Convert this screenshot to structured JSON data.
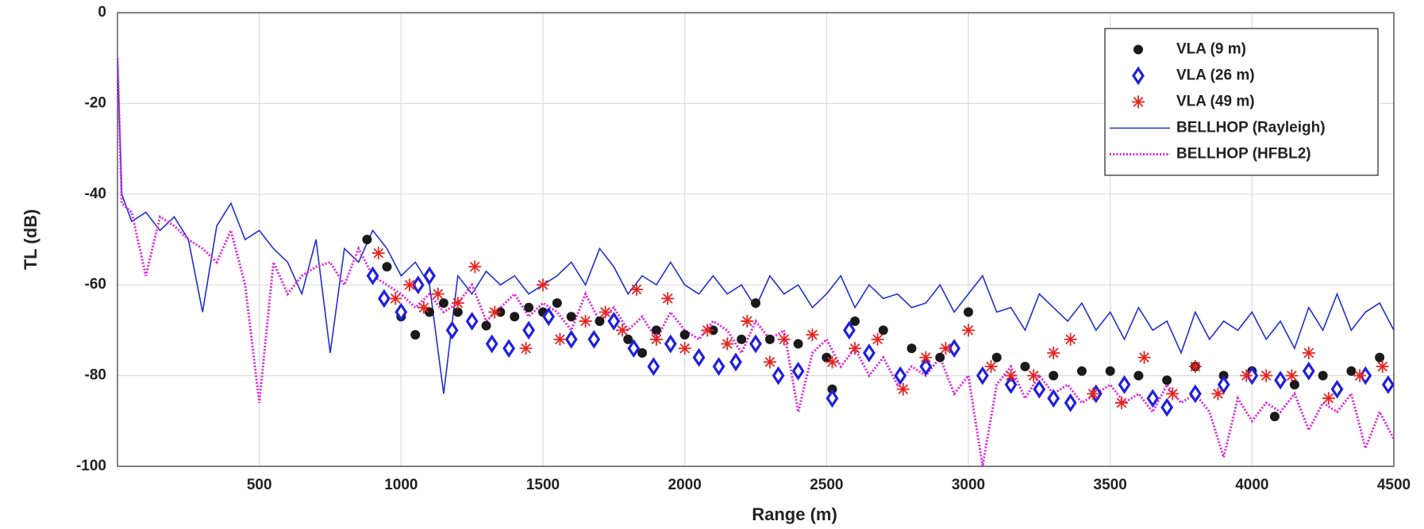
{
  "chart_data": {
    "type": "line",
    "xlabel": "Range (m)",
    "ylabel": "TL (dB)",
    "xlim": [
      0,
      4500
    ],
    "xticks": [
      500,
      1000,
      1500,
      2000,
      2500,
      3000,
      3500,
      4000,
      4500
    ],
    "ylim": [
      -100,
      0
    ],
    "yticks": [
      -100,
      -80,
      -60,
      -40,
      -20,
      0
    ],
    "grid": true,
    "legend": "upper right",
    "series": [
      {
        "name": "VLA (9 m)",
        "type": "scatter",
        "marker": "dot",
        "color": "#1a1a1a",
        "x": [
          880,
          950,
          1000,
          1050,
          1100,
          1150,
          1200,
          1250,
          1300,
          1350,
          1400,
          1450,
          1500,
          1550,
          1600,
          1700,
          1800,
          1850,
          1900,
          2000,
          2100,
          2200,
          2250,
          2300,
          2400,
          2500,
          2520,
          2600,
          2700,
          2800,
          2900,
          3000,
          3100,
          3200,
          3300,
          3400,
          3500,
          3600,
          3700,
          3800,
          3900,
          4000,
          4080,
          4150,
          4250,
          4350,
          4450
        ],
        "values": [
          -50,
          -56,
          -67,
          -71,
          -66,
          -64,
          -66,
          -68,
          -69,
          -66,
          -67,
          -65,
          -66,
          -64,
          -67,
          -68,
          -72,
          -75,
          -70,
          -71,
          -70,
          -72,
          -64,
          -72,
          -73,
          -76,
          -83,
          -68,
          -70,
          -74,
          -76,
          -66,
          -76,
          -78,
          -80,
          -79,
          -79,
          -80,
          -81,
          -78,
          -80,
          -79,
          -89,
          -82,
          -80,
          -79,
          -76
        ]
      },
      {
        "name": "VLA (26 m)",
        "type": "scatter",
        "marker": "diamond",
        "color": "#1f1fe0",
        "x": [
          900,
          940,
          1000,
          1060,
          1100,
          1180,
          1250,
          1320,
          1380,
          1450,
          1520,
          1600,
          1680,
          1750,
          1820,
          1890,
          1950,
          2050,
          2120,
          2180,
          2250,
          2330,
          2400,
          2520,
          2580,
          2650,
          2760,
          2850,
          2950,
          3050,
          3150,
          3250,
          3300,
          3360,
          3450,
          3550,
          3650,
          3700,
          3800,
          3900,
          4000,
          4100,
          4200,
          4300,
          4400,
          4480
        ],
        "values": [
          -58,
          -63,
          -66,
          -60,
          -58,
          -70,
          -68,
          -73,
          -74,
          -70,
          -67,
          -72,
          -72,
          -68,
          -74,
          -78,
          -73,
          -76,
          -78,
          -77,
          -73,
          -80,
          -79,
          -85,
          -70,
          -75,
          -80,
          -78,
          -74,
          -80,
          -82,
          -83,
          -85,
          -86,
          -84,
          -82,
          -85,
          -87,
          -84,
          -82,
          -80,
          -81,
          -79,
          -83,
          -80,
          -82
        ]
      },
      {
        "name": "VLA (49 m)",
        "type": "scatter",
        "marker": "asterisk",
        "color": "#e8231f",
        "x": [
          920,
          980,
          1030,
          1080,
          1130,
          1200,
          1260,
          1330,
          1440,
          1500,
          1560,
          1650,
          1720,
          1780,
          1830,
          1900,
          1940,
          2000,
          2080,
          2150,
          2220,
          2300,
          2350,
          2450,
          2520,
          2600,
          2680,
          2770,
          2850,
          2920,
          3000,
          3080,
          3150,
          3230,
          3300,
          3360,
          3440,
          3540,
          3620,
          3720,
          3800,
          3880,
          3980,
          4050,
          4140,
          4200,
          4270,
          4380,
          4460
        ],
        "values": [
          -53,
          -63,
          -60,
          -65,
          -62,
          -64,
          -56,
          -66,
          -74,
          -60,
          -72,
          -68,
          -66,
          -70,
          -61,
          -72,
          -63,
          -74,
          -70,
          -73,
          -68,
          -77,
          -72,
          -71,
          -77,
          -74,
          -72,
          -83,
          -76,
          -74,
          -70,
          -78,
          -80,
          -80,
          -75,
          -72,
          -84,
          -86,
          -76,
          -84,
          -78,
          -84,
          -80,
          -80,
          -80,
          -75,
          -85,
          -80,
          -78
        ]
      },
      {
        "name": "BELLHOP (Rayleigh)",
        "type": "line",
        "style": "solid",
        "color": "#1f2fd0",
        "x": [
          0,
          15,
          50,
          100,
          150,
          200,
          250,
          300,
          350,
          400,
          450,
          500,
          550,
          600,
          650,
          700,
          750,
          800,
          850,
          900,
          950,
          1000,
          1050,
          1100,
          1150,
          1200,
          1250,
          1300,
          1350,
          1400,
          1450,
          1500,
          1550,
          1600,
          1650,
          1700,
          1750,
          1800,
          1850,
          1900,
          1950,
          2000,
          2050,
          2100,
          2150,
          2200,
          2250,
          2300,
          2350,
          2400,
          2450,
          2500,
          2550,
          2600,
          2650,
          2700,
          2750,
          2800,
          2850,
          2900,
          2950,
          3000,
          3050,
          3100,
          3150,
          3200,
          3250,
          3300,
          3350,
          3400,
          3450,
          3500,
          3550,
          3600,
          3650,
          3700,
          3750,
          3800,
          3850,
          3900,
          3950,
          4000,
          4050,
          4100,
          4150,
          4200,
          4250,
          4300,
          4350,
          4400,
          4450,
          4500
        ],
        "values": [
          -10,
          -40,
          -46,
          -44,
          -48,
          -45,
          -50,
          -66,
          -47,
          -42,
          -50,
          -48,
          -52,
          -55,
          -62,
          -50,
          -75,
          -52,
          -55,
          -48,
          -52,
          -58,
          -55,
          -60,
          -84,
          -58,
          -62,
          -57,
          -60,
          -58,
          -62,
          -60,
          -58,
          -55,
          -60,
          -52,
          -56,
          -62,
          -58,
          -60,
          -55,
          -60,
          -62,
          -58,
          -62,
          -60,
          -65,
          -58,
          -62,
          -60,
          -65,
          -62,
          -58,
          -65,
          -60,
          -63,
          -62,
          -65,
          -64,
          -60,
          -66,
          -62,
          -58,
          -66,
          -65,
          -70,
          -62,
          -65,
          -68,
          -64,
          -70,
          -66,
          -72,
          -65,
          -70,
          -68,
          -75,
          -66,
          -72,
          -68,
          -70,
          -66,
          -72,
          -68,
          -74,
          -65,
          -70,
          -62,
          -70,
          -66,
          -64,
          -70
        ]
      },
      {
        "name": "BELLHOP (HFBL2)",
        "type": "line",
        "style": "dotted",
        "color": "#e020e0",
        "x": [
          0,
          15,
          50,
          100,
          150,
          200,
          250,
          300,
          350,
          400,
          450,
          500,
          550,
          600,
          650,
          700,
          750,
          800,
          850,
          900,
          950,
          1000,
          1050,
          1100,
          1150,
          1200,
          1250,
          1300,
          1350,
          1400,
          1450,
          1500,
          1550,
          1600,
          1650,
          1700,
          1750,
          1800,
          1850,
          1900,
          1950,
          2000,
          2050,
          2100,
          2150,
          2200,
          2250,
          2300,
          2350,
          2400,
          2450,
          2500,
          2550,
          2600,
          2650,
          2700,
          2750,
          2800,
          2850,
          2900,
          2950,
          3000,
          3050,
          3100,
          3150,
          3200,
          3250,
          3300,
          3350,
          3400,
          3450,
          3500,
          3550,
          3600,
          3650,
          3700,
          3750,
          3800,
          3850,
          3900,
          3950,
          4000,
          4050,
          4100,
          4150,
          4200,
          4250,
          4300,
          4350,
          4400,
          4450,
          4500
        ],
        "values": [
          -10,
          -42,
          -44,
          -58,
          -45,
          -47,
          -50,
          -52,
          -55,
          -48,
          -60,
          -86,
          -55,
          -62,
          -58,
          -56,
          -55,
          -60,
          -52,
          -58,
          -60,
          -62,
          -65,
          -62,
          -66,
          -64,
          -60,
          -68,
          -65,
          -62,
          -67,
          -64,
          -66,
          -70,
          -62,
          -68,
          -65,
          -70,
          -67,
          -72,
          -66,
          -70,
          -72,
          -68,
          -70,
          -75,
          -68,
          -72,
          -70,
          -88,
          -75,
          -72,
          -78,
          -74,
          -80,
          -76,
          -82,
          -78,
          -80,
          -76,
          -84,
          -80,
          -100,
          -82,
          -78,
          -85,
          -80,
          -84,
          -82,
          -86,
          -84,
          -82,
          -86,
          -84,
          -88,
          -82,
          -86,
          -84,
          -88,
          -98,
          -85,
          -90,
          -86,
          -88,
          -84,
          -92,
          -86,
          -88,
          -84,
          -96,
          -88,
          -94
        ]
      }
    ]
  }
}
